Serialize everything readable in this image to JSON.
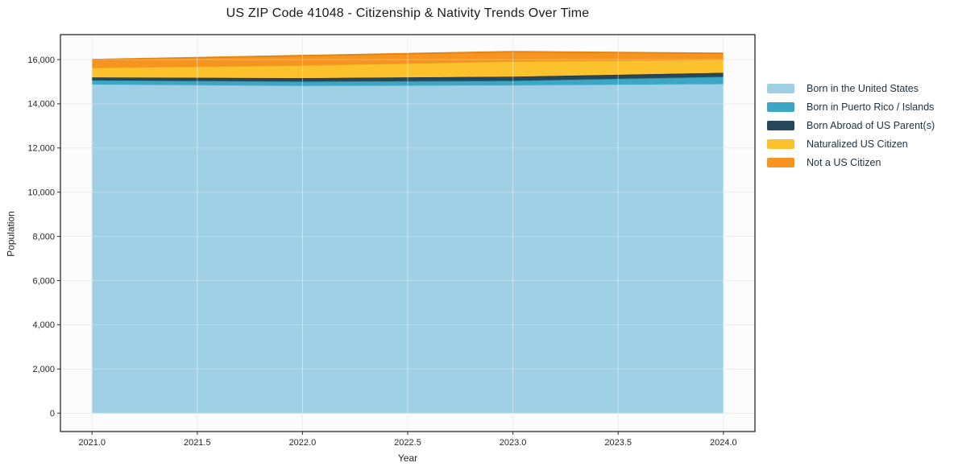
{
  "chart_data": {
    "type": "area",
    "stacked": true,
    "title": "US ZIP Code 41048 - Citizenship & Nativity Trends Over Time",
    "xlabel": "Year",
    "ylabel": "Population",
    "x": [
      2021,
      2022,
      2023,
      2024
    ],
    "series": [
      {
        "name": "Born in the United States",
        "color": "#9FD0E6",
        "edge_color": "#8AC2DC",
        "values": [
          14890,
          14820,
          14850,
          14905
        ]
      },
      {
        "name": "Born in Puerto Rico / Islands",
        "color": "#3BA7C4",
        "edge_color": "#2E93AE",
        "values": [
          180,
          195,
          200,
          325
        ]
      },
      {
        "name": "Born Abroad of US Parent(s)",
        "color": "#25485C",
        "edge_color": "#16303F",
        "values": [
          130,
          155,
          185,
          180
        ]
      },
      {
        "name": "Naturalized US Citizen",
        "color": "#FCC22D",
        "edge_color": "#ECAE17",
        "values": [
          435,
          575,
          690,
          585
        ]
      },
      {
        "name": "Not a US Citizen",
        "color": "#F5941E",
        "edge_color": "#E2830F",
        "values": [
          365,
          435,
          435,
          290
        ]
      }
    ],
    "totals": [
      16000,
      16180,
      16360,
      16285
    ],
    "xticks": {
      "values": [
        2021.0,
        2021.5,
        2022.0,
        2022.5,
        2023.0,
        2023.5,
        2024.0
      ],
      "labels": [
        "2021.0",
        "2021.5",
        "2022.0",
        "2022.5",
        "2023.0",
        "2023.5",
        "2024.0"
      ]
    },
    "yticks": {
      "values": [
        0,
        2000,
        4000,
        6000,
        8000,
        10000,
        12000,
        14000,
        16000
      ],
      "labels": [
        "0",
        "2,000",
        "4,000",
        "6,000",
        "8,000",
        "10,000",
        "12,000",
        "14,000",
        "16,000"
      ]
    },
    "xlim": [
      2020.85,
      2024.15
    ],
    "ylim": [
      -830,
      17130
    ],
    "grid": true,
    "legend_position": "right of plot, no frame"
  },
  "colors": {
    "grid": "#e4e4e4",
    "grid_over_area": "rgba(255,255,255,0.45)",
    "spine": "#2a2a2a",
    "tick_label": "#262626",
    "plot_bg": "#fcfcfc"
  }
}
